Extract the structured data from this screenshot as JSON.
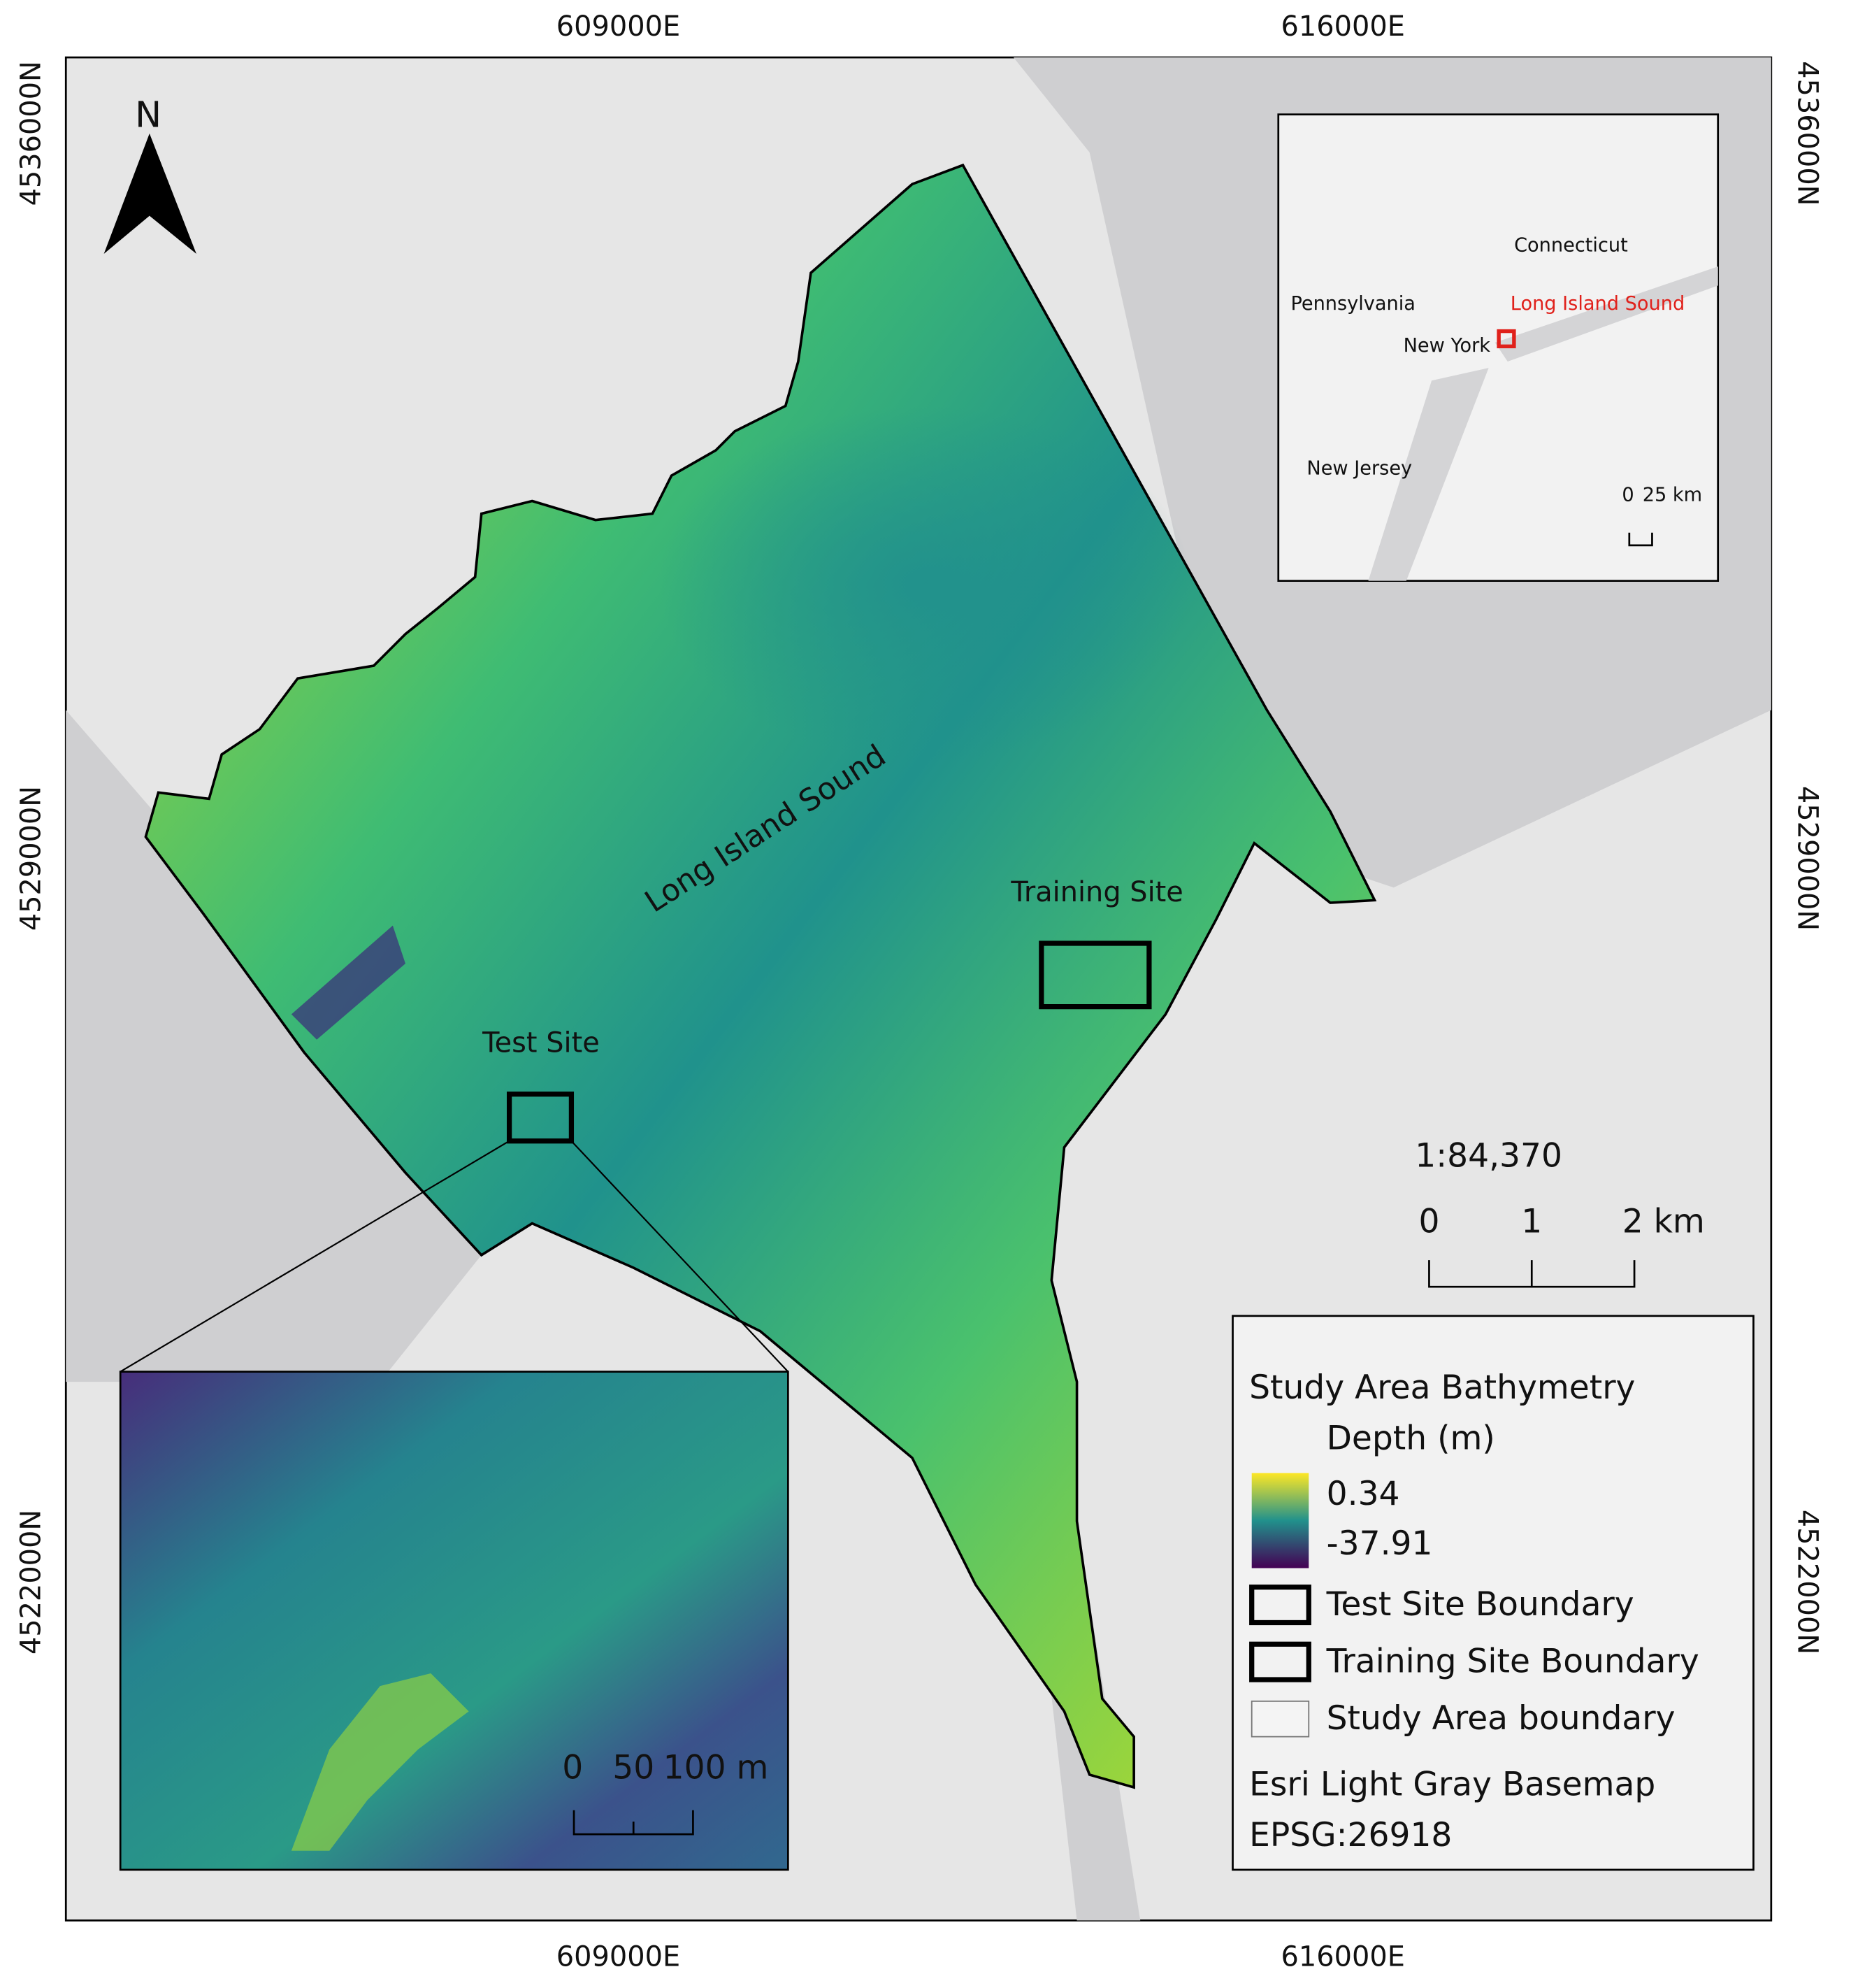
{
  "map": {
    "grid_labels": {
      "top": [
        "609000E",
        "616000E"
      ],
      "bottom": [
        "609000E",
        "616000E"
      ],
      "left": [
        "4536000N",
        "4529000N",
        "4522000N"
      ],
      "right": [
        "4536000N",
        "4529000N",
        "4522000N"
      ]
    },
    "north_arrow": "N",
    "labels": {
      "water": "Long Island Sound",
      "training_site": "Training Site",
      "test_site": "Test Site"
    },
    "scale": {
      "ratio": "1:84,370",
      "ticks": [
        "0",
        "1",
        "2 km"
      ]
    },
    "locator": {
      "labels": [
        "Connecticut",
        "Pennsylvania",
        "Long Island Sound",
        "New York",
        "New Jersey"
      ],
      "scale": [
        "0",
        "25 km"
      ]
    },
    "zoom_inset": {
      "scale_ticks": [
        "0",
        "50",
        "100 m"
      ]
    },
    "legend": {
      "title": "Study Area Bathymetry",
      "subtitle": "Depth (m)",
      "max": "0.34",
      "min": "-37.91",
      "items": [
        "Test Site Boundary",
        "Training Site Boundary",
        "Study Area boundary"
      ],
      "basemap": "Esri Light Gray Basemap",
      "crs": "EPSG:26918"
    }
  }
}
